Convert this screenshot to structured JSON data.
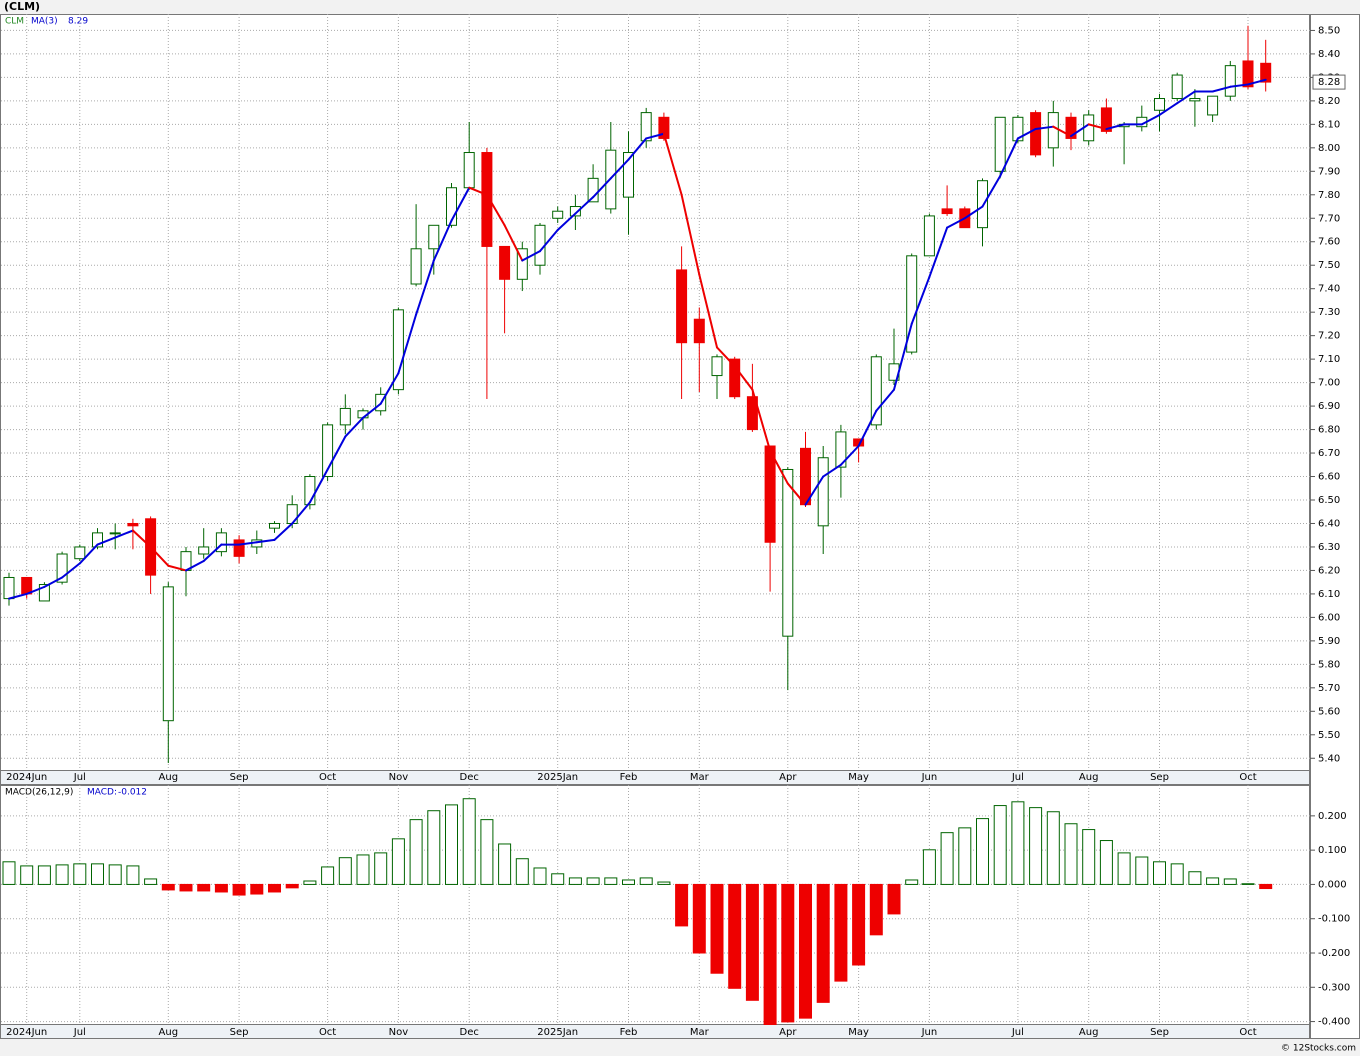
{
  "chart_data": [
    {
      "type": "candlestick",
      "title": "(CLM)",
      "symbol": "CLM",
      "ma_label": "MA(3)",
      "ma_last": 8.29,
      "last_price": 8.28,
      "categories": [
        null,
        "2024Jun",
        null,
        null,
        "Jul",
        null,
        null,
        null,
        null,
        "Aug",
        null,
        null,
        null,
        "Sep",
        null,
        null,
        null,
        null,
        "Oct",
        null,
        null,
        null,
        "Nov",
        null,
        null,
        null,
        "Dec",
        null,
        null,
        null,
        null,
        "2025Jan",
        null,
        null,
        null,
        "Feb",
        null,
        null,
        null,
        "Mar",
        null,
        null,
        null,
        null,
        "Apr",
        null,
        null,
        null,
        "May",
        null,
        null,
        null,
        "Jun",
        null,
        null,
        null,
        null,
        "Jul",
        null,
        null,
        null,
        "Aug",
        null,
        null,
        null,
        "Sep",
        null,
        null,
        null,
        null,
        "Oct",
        null
      ],
      "open": [
        6.08,
        6.17,
        6.07,
        6.15,
        6.25,
        6.3,
        6.36,
        6.4,
        6.42,
        5.56,
        6.2,
        6.27,
        6.28,
        6.33,
        6.3,
        6.38,
        6.4,
        6.48,
        6.6,
        6.82,
        6.85,
        6.88,
        6.97,
        7.42,
        7.57,
        7.67,
        7.83,
        7.98,
        7.58,
        7.44,
        7.5,
        7.7,
        7.71,
        7.77,
        7.74,
        7.79,
        8.03,
        8.13,
        7.48,
        7.27,
        7.03,
        7.1,
        6.94,
        6.73,
        5.92,
        6.72,
        6.39,
        6.64,
        6.76,
        6.82,
        7.01,
        7.13,
        7.54,
        7.74,
        7.74,
        7.66,
        7.9,
        8.03,
        8.15,
        8.0,
        8.13,
        8.03,
        8.17,
        8.09,
        8.09,
        8.16,
        8.21,
        8.2,
        8.14,
        8.22,
        8.37,
        8.36
      ],
      "high": [
        6.19,
        6.17,
        6.15,
        6.28,
        6.31,
        6.38,
        6.4,
        6.42,
        6.43,
        6.15,
        6.3,
        6.38,
        6.38,
        6.35,
        6.37,
        6.41,
        6.52,
        6.61,
        6.83,
        6.95,
        6.89,
        6.98,
        7.32,
        7.76,
        7.67,
        7.85,
        8.11,
        8.0,
        7.58,
        7.6,
        7.68,
        7.75,
        7.8,
        7.93,
        8.11,
        8.07,
        8.17,
        8.15,
        7.58,
        7.32,
        7.12,
        7.11,
        7.08,
        6.73,
        6.64,
        6.79,
        6.73,
        6.82,
        6.76,
        7.12,
        7.23,
        7.55,
        7.72,
        7.84,
        7.75,
        7.87,
        8.13,
        8.14,
        8.16,
        8.2,
        8.15,
        8.16,
        8.21,
        8.11,
        8.18,
        8.23,
        8.32,
        8.25,
        8.22,
        8.37,
        8.52,
        8.46
      ],
      "low": [
        6.05,
        6.08,
        6.07,
        6.14,
        6.24,
        6.29,
        6.29,
        6.29,
        6.1,
        5.38,
        6.09,
        6.25,
        6.26,
        6.23,
        6.27,
        6.36,
        6.38,
        6.46,
        6.58,
        6.78,
        6.8,
        6.86,
        6.95,
        7.41,
        7.46,
        7.66,
        7.82,
        6.93,
        7.21,
        7.39,
        7.46,
        7.68,
        7.65,
        7.77,
        7.72,
        7.63,
        8.0,
        8.03,
        6.93,
        6.96,
        6.93,
        6.93,
        6.79,
        6.11,
        5.69,
        6.47,
        6.27,
        6.51,
        6.66,
        6.8,
        6.99,
        7.12,
        7.54,
        7.71,
        7.66,
        7.58,
        7.87,
        8.02,
        7.96,
        7.92,
        7.99,
        8.01,
        8.06,
        7.93,
        8.07,
        8.07,
        8.2,
        8.09,
        8.11,
        8.2,
        8.25,
        8.24
      ],
      "close": [
        6.17,
        6.1,
        6.14,
        6.27,
        6.3,
        6.36,
        6.36,
        6.39,
        6.18,
        6.13,
        6.28,
        6.3,
        6.36,
        6.26,
        6.33,
        6.4,
        6.48,
        6.6,
        6.82,
        6.89,
        6.88,
        6.95,
        7.31,
        7.57,
        7.67,
        7.83,
        7.98,
        7.58,
        7.44,
        7.57,
        7.67,
        7.73,
        7.75,
        7.87,
        7.99,
        7.98,
        8.15,
        8.04,
        7.17,
        7.17,
        7.11,
        6.94,
        6.8,
        6.32,
        6.63,
        6.48,
        6.68,
        6.79,
        6.73,
        7.11,
        7.08,
        7.54,
        7.71,
        7.72,
        7.66,
        7.86,
        8.13,
        8.13,
        7.97,
        8.15,
        8.04,
        8.14,
        8.07,
        8.1,
        8.13,
        8.21,
        8.31,
        8.21,
        8.22,
        8.35,
        8.26,
        8.28
      ],
      "ma": [
        6.08,
        6.1,
        6.13,
        6.17,
        6.23,
        6.31,
        6.34,
        6.37,
        6.3,
        6.22,
        6.2,
        6.24,
        6.31,
        6.31,
        6.32,
        6.33,
        6.4,
        6.49,
        6.63,
        6.77,
        6.85,
        6.91,
        7.04,
        7.29,
        7.52,
        7.69,
        7.83,
        7.8,
        7.67,
        7.52,
        7.56,
        7.65,
        7.72,
        7.79,
        7.87,
        7.95,
        8.04,
        8.06,
        7.8,
        7.46,
        7.15,
        7.07,
        6.97,
        6.71,
        6.57,
        6.48,
        6.6,
        6.65,
        6.73,
        6.88,
        6.97,
        7.25,
        7.45,
        7.66,
        7.7,
        7.75,
        7.88,
        8.04,
        8.08,
        8.09,
        8.05,
        8.1,
        8.08,
        8.1,
        8.1,
        8.14,
        8.19,
        8.24,
        8.24,
        8.26,
        8.27,
        8.29
      ],
      "ylim": [
        5.35,
        8.57
      ],
      "yticks": [
        {
          "value": 8.5,
          "label": "8.50"
        },
        {
          "value": 8.4,
          "label": "8.40"
        },
        {
          "value": 8.3,
          "label": "8.30"
        },
        {
          "value": 8.2,
          "label": "8.20"
        },
        {
          "value": 8.1,
          "label": "8.10"
        },
        {
          "value": 8.0,
          "label": "8.00"
        },
        {
          "value": 7.9,
          "label": "7.90"
        },
        {
          "value": 7.8,
          "label": "7.80"
        },
        {
          "value": 7.7,
          "label": "7.70"
        },
        {
          "value": 7.6,
          "label": "7.60"
        },
        {
          "value": 7.5,
          "label": "7.50"
        },
        {
          "value": 7.4,
          "label": "7.40"
        },
        {
          "value": 7.3,
          "label": "7.30"
        },
        {
          "value": 7.2,
          "label": "7.20"
        },
        {
          "value": 7.1,
          "label": "7.10"
        },
        {
          "value": 7.0,
          "label": "7.00"
        },
        {
          "value": 6.9,
          "label": "6.90"
        },
        {
          "value": 6.8,
          "label": "6.80"
        },
        {
          "value": 6.7,
          "label": "6.70"
        },
        {
          "value": 6.6,
          "label": "6.60"
        },
        {
          "value": 6.5,
          "label": "6.50"
        },
        {
          "value": 6.4,
          "label": "6.40"
        },
        {
          "value": 6.3,
          "label": "6.30"
        },
        {
          "value": 6.2,
          "label": "6.20"
        },
        {
          "value": 6.1,
          "label": "6.10"
        },
        {
          "value": 6.0,
          "label": "6.00"
        },
        {
          "value": 5.9,
          "label": "5.90"
        },
        {
          "value": 5.8,
          "label": "5.80"
        },
        {
          "value": 5.7,
          "label": "5.70"
        },
        {
          "value": 5.6,
          "label": "5.60"
        },
        {
          "value": 5.5,
          "label": "5.50"
        },
        {
          "value": 5.4,
          "label": "5.40"
        }
      ],
      "grid": true,
      "up_color": "#006400",
      "down_color": "#ee0000",
      "ma_up_color": "#0000dd",
      "ma_down_color": "#ee0000"
    },
    {
      "type": "bar",
      "title": "MACD(26,12,9)",
      "value_label": "MACD:",
      "last_value": -0.012,
      "categories": [
        null,
        "2024Jun",
        null,
        null,
        "Jul",
        null,
        null,
        null,
        null,
        "Aug",
        null,
        null,
        null,
        "Sep",
        null,
        null,
        null,
        null,
        "Oct",
        null,
        null,
        null,
        "Nov",
        null,
        null,
        null,
        "Dec",
        null,
        null,
        null,
        null,
        "2025Jan",
        null,
        null,
        null,
        "Feb",
        null,
        null,
        null,
        "Mar",
        null,
        null,
        null,
        null,
        "Apr",
        null,
        null,
        null,
        "May",
        null,
        null,
        null,
        "Jun",
        null,
        null,
        null,
        null,
        "Jul",
        null,
        null,
        null,
        "Aug",
        null,
        null,
        null,
        "Sep",
        null,
        null,
        null,
        null,
        "Oct",
        null
      ],
      "values": [
        0.066,
        0.054,
        0.054,
        0.057,
        0.06,
        0.06,
        0.057,
        0.054,
        0.016,
        -0.016,
        -0.019,
        -0.019,
        -0.022,
        -0.031,
        -0.028,
        -0.022,
        -0.01,
        0.01,
        0.051,
        0.078,
        0.086,
        0.092,
        0.133,
        0.189,
        0.215,
        0.232,
        0.25,
        0.189,
        0.118,
        0.075,
        0.048,
        0.031,
        0.019,
        0.019,
        0.019,
        0.013,
        0.019,
        0.007,
        -0.121,
        -0.2,
        -0.259,
        -0.303,
        -0.338,
        -0.41,
        -0.401,
        -0.39,
        -0.344,
        -0.282,
        -0.235,
        -0.147,
        -0.086,
        0.013,
        0.101,
        0.151,
        0.165,
        0.192,
        0.23,
        0.241,
        0.224,
        0.212,
        0.177,
        0.16,
        0.128,
        0.092,
        0.08,
        0.066,
        0.06,
        0.037,
        0.019,
        0.016,
        0.002,
        -0.012
      ],
      "ylim": [
        -0.41,
        0.29
      ],
      "yticks": [
        {
          "value": 0.2,
          "label": "0.200"
        },
        {
          "value": 0.1,
          "label": "0.100"
        },
        {
          "value": 0,
          "label": "0.000"
        },
        {
          "value": -0.1,
          "label": "-0.100"
        },
        {
          "value": -0.2,
          "label": "-0.200"
        },
        {
          "value": -0.3,
          "label": "-0.300"
        },
        {
          "value": -0.4,
          "label": "-0.400"
        }
      ],
      "grid": true,
      "pos_color": "#006400",
      "neg_color": "#ee0000"
    }
  ],
  "footer": "© 12Stocks.com"
}
